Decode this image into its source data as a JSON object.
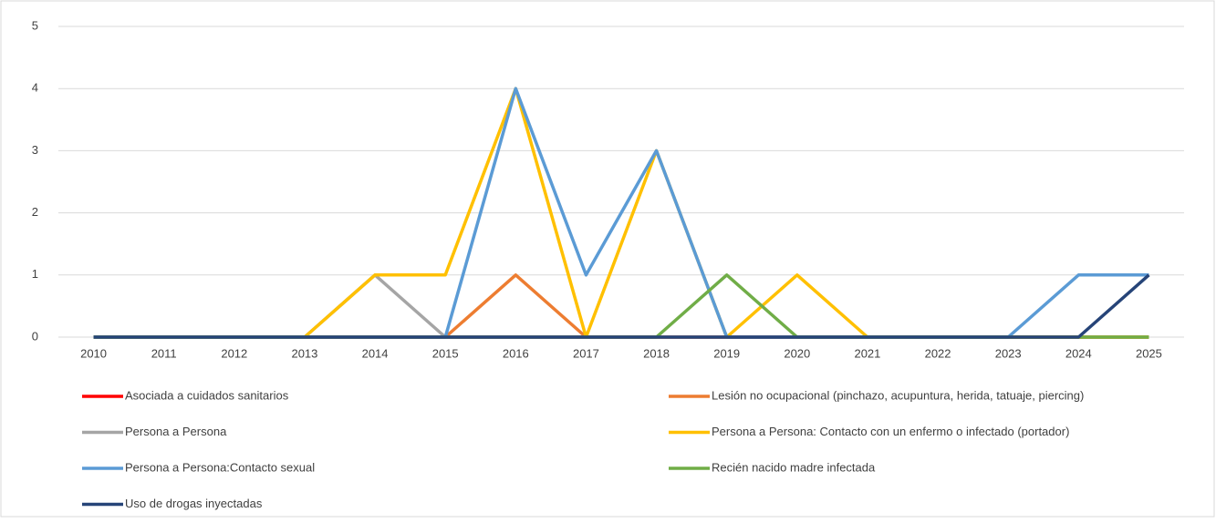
{
  "chart_data": {
    "type": "line",
    "categories": [
      "2010",
      "2011",
      "2012",
      "2013",
      "2014",
      "2015",
      "2016",
      "2017",
      "2018",
      "2019",
      "2020",
      "2021",
      "2022",
      "2023",
      "2024",
      "2025"
    ],
    "series": [
      {
        "name": "Asociada a cuidados sanitarios",
        "color": "#ff0000",
        "values": [
          0,
          0,
          0,
          0,
          0,
          0,
          0,
          0,
          0,
          0,
          0,
          0,
          0,
          0,
          0,
          0
        ]
      },
      {
        "name": "Lesión no ocupacional (pinchazo, acupuntura, herida, tatuaje, piercing)",
        "color": "#ed7d31",
        "values": [
          0,
          0,
          0,
          0,
          0,
          0,
          1,
          0,
          0,
          0,
          0,
          0,
          0,
          0,
          0,
          0
        ]
      },
      {
        "name": "Persona a Persona",
        "color": "#a5a5a5",
        "values": [
          0,
          0,
          0,
          0,
          1,
          0,
          0,
          0,
          0,
          0,
          0,
          0,
          0,
          0,
          0,
          0
        ]
      },
      {
        "name": "Persona a Persona: Contacto con un enfermo o infectado (portador)",
        "color": "#ffc000",
        "values": [
          0,
          0,
          0,
          0,
          1,
          1,
          4,
          0,
          3,
          0,
          1,
          0,
          0,
          0,
          0,
          0
        ]
      },
      {
        "name": "Persona a Persona:Contacto sexual",
        "color": "#5b9bd5",
        "values": [
          0,
          0,
          0,
          0,
          0,
          0,
          4,
          1,
          3,
          0,
          0,
          0,
          0,
          0,
          1,
          1
        ]
      },
      {
        "name": "Recién nacido madre infectada",
        "color": "#70ad47",
        "values": [
          0,
          0,
          0,
          0,
          0,
          0,
          0,
          0,
          0,
          1,
          0,
          0,
          0,
          0,
          0,
          0
        ]
      },
      {
        "name": "Uso de drogas inyectadas",
        "color": "#264478",
        "values": [
          0,
          0,
          0,
          0,
          0,
          0,
          0,
          0,
          0,
          0,
          0,
          0,
          0,
          0,
          0,
          1
        ]
      }
    ],
    "ylim": [
      0,
      5
    ],
    "yticks": [
      0,
      1,
      2,
      3,
      4,
      5
    ],
    "grid": true
  }
}
